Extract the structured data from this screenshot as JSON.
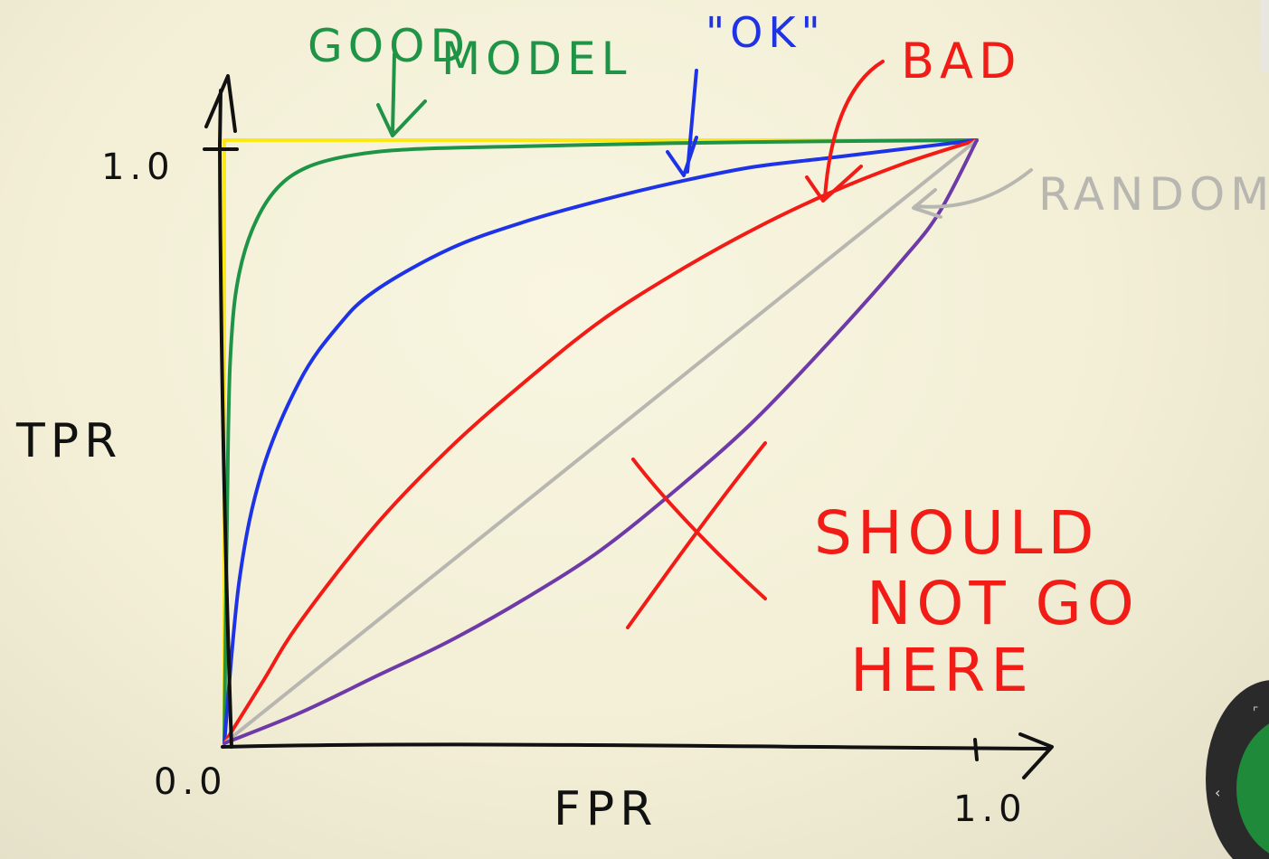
{
  "chart_data": {
    "type": "line",
    "title": "",
    "xlabel": "FPR",
    "ylabel": "TPR",
    "xlim": [
      0,
      1
    ],
    "ylim": [
      0,
      1
    ],
    "grid": false,
    "legend": "none",
    "tick_labels": {
      "origin": "0.0",
      "y_max": "1.0",
      "x_max": "1.0"
    },
    "series": [
      {
        "color": "#ffe600",
        "style": "highlight",
        "x": [
          0,
          0,
          1
        ],
        "y": [
          0,
          1,
          1
        ]
      },
      {
        "color": "#1f9447",
        "x": [
          0,
          0.005,
          0.01,
          0.02,
          0.04,
          0.07,
          0.11,
          0.17,
          0.25,
          0.4,
          0.6,
          0.8,
          1.0
        ],
        "y": [
          0,
          0.5,
          0.68,
          0.78,
          0.86,
          0.92,
          0.955,
          0.975,
          0.985,
          0.99,
          0.995,
          0.998,
          1.0
        ]
      },
      {
        "color": "#1f33e6",
        "x": [
          0,
          0.02,
          0.05,
          0.1,
          0.15,
          0.2,
          0.3,
          0.4,
          0.5,
          0.6,
          0.7,
          0.8,
          0.9,
          1.0
        ],
        "y": [
          0,
          0.27,
          0.45,
          0.6,
          0.69,
          0.75,
          0.82,
          0.865,
          0.9,
          0.93,
          0.955,
          0.97,
          0.985,
          1.0
        ]
      },
      {
        "color": "#f21c16",
        "x": [
          0,
          0.05,
          0.1,
          0.2,
          0.3,
          0.4,
          0.5,
          0.6,
          0.7,
          0.8,
          0.9,
          1.0
        ],
        "y": [
          0,
          0.1,
          0.2,
          0.36,
          0.49,
          0.6,
          0.7,
          0.78,
          0.85,
          0.91,
          0.96,
          1.0
        ]
      },
      {
        "color": "#b8b6b0",
        "x": [
          0,
          1
        ],
        "y": [
          0,
          1
        ]
      },
      {
        "color": "#6e3aa8",
        "x": [
          0,
          0.1,
          0.2,
          0.3,
          0.4,
          0.5,
          0.6,
          0.7,
          0.8,
          0.9,
          0.95,
          1.0
        ],
        "y": [
          0,
          0.05,
          0.11,
          0.17,
          0.24,
          0.32,
          0.42,
          0.53,
          0.66,
          0.8,
          0.88,
          1.0
        ]
      }
    ],
    "annotations": [
      {
        "text": "GOOD",
        "color": "#1f9447"
      },
      {
        "text": "MODEL",
        "color": "#1f9447"
      },
      {
        "text": "\"OK\"",
        "color": "#1f33e6"
      },
      {
        "text": "BAD",
        "color": "#f21c16"
      },
      {
        "text": "RANDOM",
        "color": "#b8b6b0"
      },
      {
        "text": "SHOULD",
        "color": "#f21c16"
      },
      {
        "text": "NOT GO",
        "color": "#f21c16"
      },
      {
        "text": "HERE",
        "color": "#f21c16"
      }
    ]
  },
  "colors": {
    "background": "#f6f2dc",
    "axis": "#111111",
    "warning_cross": "#f21c16"
  }
}
